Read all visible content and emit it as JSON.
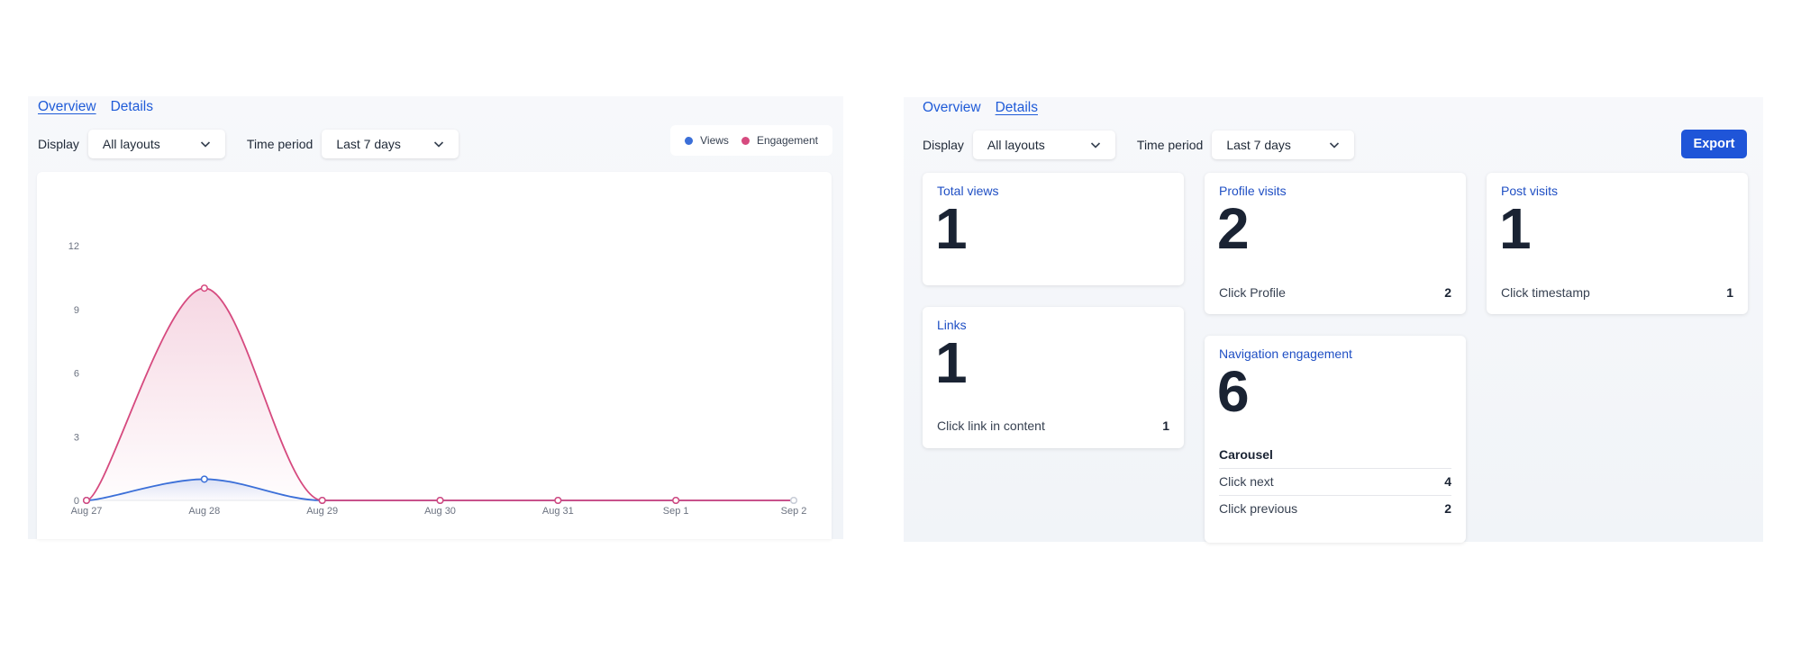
{
  "overview": {
    "tabs": [
      {
        "label": "Overview",
        "active": true
      },
      {
        "label": "Details",
        "active": false
      }
    ],
    "display_label": "Display",
    "display_value": "All layouts",
    "time_label": "Time period",
    "time_value": "Last 7 days",
    "legend": [
      {
        "label": "Views",
        "color": "#3b6fd8"
      },
      {
        "label": "Engagement",
        "color": "#d64a7f"
      }
    ]
  },
  "chart_data": {
    "type": "line",
    "x": [
      "Aug 27",
      "Aug 28",
      "Aug 29",
      "Aug 30",
      "Aug 31",
      "Sep 1",
      "Sep 2"
    ],
    "yticks": [
      0,
      3,
      6,
      9,
      12
    ],
    "ylim": [
      0,
      12
    ],
    "series": [
      {
        "name": "Views",
        "color": "#3b6fd8",
        "values": [
          0,
          1,
          0,
          0,
          0,
          0,
          0
        ]
      },
      {
        "name": "Engagement",
        "color": "#d64a7f",
        "values": [
          0,
          10,
          0,
          0,
          0,
          0,
          0
        ]
      }
    ]
  },
  "details": {
    "tabs": [
      {
        "label": "Overview",
        "active": false
      },
      {
        "label": "Details",
        "active": true
      }
    ],
    "display_label": "Display",
    "display_value": "All layouts",
    "time_label": "Time period",
    "time_value": "Last 7 days",
    "export_label": "Export",
    "cards": {
      "total_views": {
        "title": "Total views",
        "value": "1"
      },
      "profile_visits": {
        "title": "Profile visits",
        "value": "2",
        "rows": [
          {
            "label": "Click Profile",
            "value": "2"
          }
        ]
      },
      "post_visits": {
        "title": "Post visits",
        "value": "1",
        "rows": [
          {
            "label": "Click timestamp",
            "value": "1"
          }
        ]
      },
      "links": {
        "title": "Links",
        "value": "1",
        "rows": [
          {
            "label": "Click link in content",
            "value": "1"
          }
        ]
      },
      "navigation": {
        "title": "Navigation engagement",
        "value": "6",
        "subheading": "Carousel",
        "rows": [
          {
            "label": "Click next",
            "value": "4"
          },
          {
            "label": "Click previous",
            "value": "2"
          }
        ]
      }
    }
  }
}
